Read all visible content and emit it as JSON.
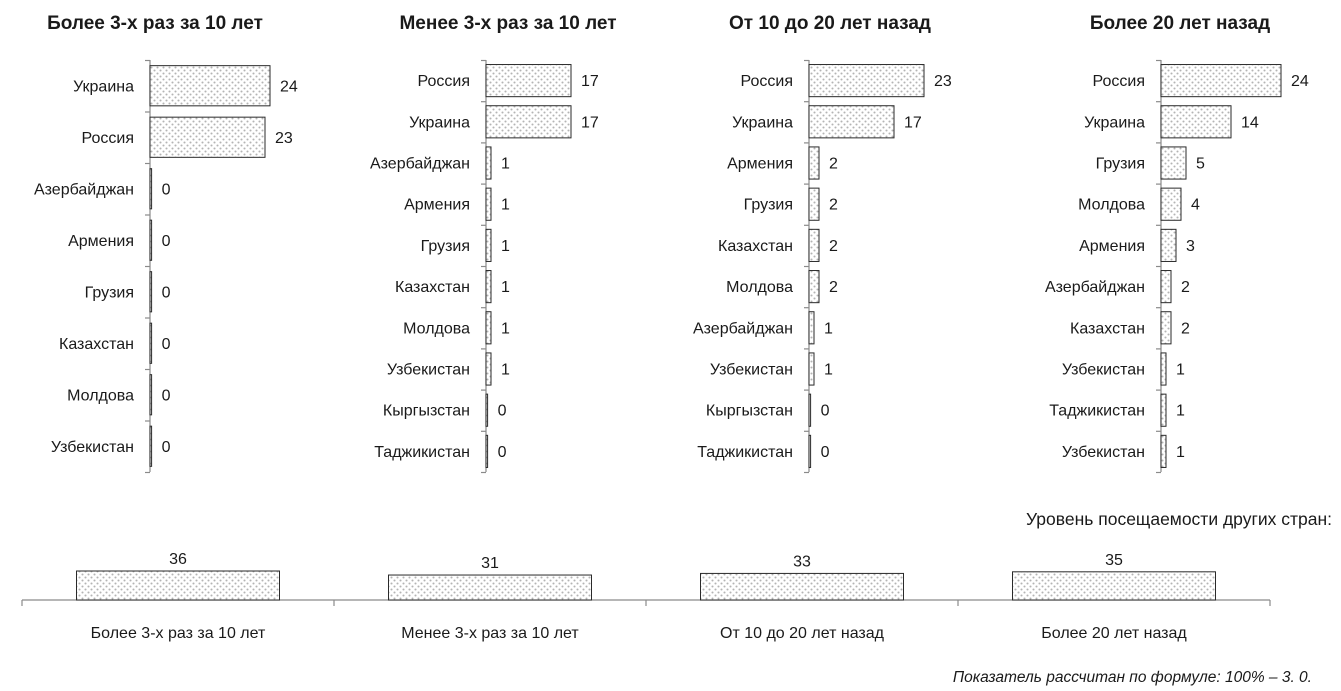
{
  "chart_data": [
    {
      "type": "bar",
      "orientation": "horizontal",
      "title": "Более 3-х раз за 10 лет",
      "categories": [
        "Украина",
        "Россия",
        "Азербайджан",
        "Армения",
        "Грузия",
        "Казахстан",
        "Молдова",
        "Узбекистан"
      ],
      "values": [
        24,
        23,
        0,
        0,
        0,
        0,
        0,
        0
      ]
    },
    {
      "type": "bar",
      "orientation": "horizontal",
      "title": "Менее 3-х раз за 10 лет",
      "categories": [
        "Россия",
        "Украина",
        "Азербайджан",
        "Армения",
        "Грузия",
        "Казахстан",
        "Молдова",
        "Узбекистан",
        "Кыргызстан",
        "Таджикистан"
      ],
      "values": [
        17,
        17,
        1,
        1,
        1,
        1,
        1,
        1,
        0,
        0
      ]
    },
    {
      "type": "bar",
      "orientation": "horizontal",
      "title": "От 10 до 20 лет назад",
      "categories": [
        "Россия",
        "Украина",
        "Армения",
        "Грузия",
        "Казахстан",
        "Молдова",
        "Азербайджан",
        "Узбекистан",
        "Кыргызстан",
        "Таджикистан"
      ],
      "values": [
        23,
        17,
        2,
        2,
        2,
        2,
        1,
        1,
        0,
        0
      ]
    },
    {
      "type": "bar",
      "orientation": "horizontal",
      "title": "Более 20 лет назад",
      "categories": [
        "Россия",
        "Украина",
        "Грузия",
        "Молдова",
        "Армения",
        "Азербайджан",
        "Казахстан",
        "Узбекистан",
        "Таджикистан",
        "Узбекистан"
      ],
      "values": [
        24,
        14,
        5,
        4,
        3,
        2,
        2,
        1,
        1,
        1
      ]
    },
    {
      "type": "bar",
      "orientation": "vertical",
      "title": "Уровень посещаемости других стран:",
      "categories": [
        "Более 3-х раз за 10 лет",
        "Менее 3-х раз за 10 лет",
        "От 10 до 20 лет назад",
        "Более 20 лет назад"
      ],
      "values": [
        36,
        31,
        33,
        35
      ]
    }
  ],
  "footnote": "Показатель рассчитан по формуле: 100% – 3. 0.",
  "colors": {
    "bar_fill": "#ffffff",
    "bar_dots": "#b4b4b4",
    "bar_stroke": "#2a2a2a",
    "axis": "#8a8a8a",
    "text": "#1a1a1a"
  }
}
